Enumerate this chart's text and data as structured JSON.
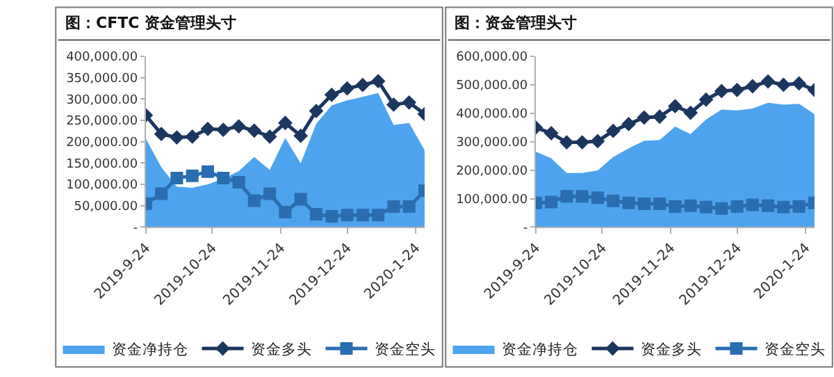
{
  "chart_data": [
    {
      "type": "line",
      "title": "图：CFTC 资金管理头寸",
      "x": [
        "2019-09-24",
        "2019-10-01",
        "2019-10-08",
        "2019-10-15",
        "2019-10-22",
        "2019-10-29",
        "2019-11-05",
        "2019-11-12",
        "2019-11-19",
        "2019-11-26",
        "2019-12-03",
        "2019-12-10",
        "2019-12-17",
        "2019-12-24",
        "2019-12-31",
        "2020-01-07",
        "2020-01-14",
        "2020-01-21",
        "2020-01-28"
      ],
      "series": [
        {
          "name": "资金净持仓",
          "type": "area",
          "color": "#4da3ee",
          "values": [
            207000,
            140000,
            95000,
            92000,
            100000,
            113000,
            131000,
            164000,
            134000,
            209000,
            149000,
            242000,
            285000,
            297000,
            305000,
            314000,
            239000,
            244000,
            180000
          ]
        },
        {
          "name": "资金多头",
          "color": "#1b365f",
          "marker": "diamond",
          "values": [
            262000,
            218000,
            210000,
            212000,
            230000,
            228000,
            236000,
            226000,
            212000,
            244000,
            214000,
            272000,
            310000,
            325000,
            333000,
            342000,
            287000,
            292000,
            265000
          ]
        },
        {
          "name": "资金空头",
          "color": "#2a6db0",
          "marker": "square",
          "values": [
            55000,
            78000,
            115000,
            120000,
            130000,
            115000,
            105000,
            62000,
            78000,
            35000,
            65000,
            30000,
            25000,
            28000,
            28000,
            28000,
            48000,
            48000,
            85000
          ]
        }
      ],
      "xlim": [
        "2019-09-24",
        "2020-01-28"
      ],
      "xticks": [
        {
          "value": "2019-09-24",
          "label": "2019-9-24"
        },
        {
          "value": "2019-10-24",
          "label": "2019-10-24"
        },
        {
          "value": "2019-11-24",
          "label": "2019-11-24"
        },
        {
          "value": "2019-12-24",
          "label": "2019-12-24"
        },
        {
          "value": "2020-01-24",
          "label": "2020-1-24"
        }
      ],
      "ylim": [
        0,
        400000
      ],
      "yticks": [
        {
          "value": 0,
          "label": "-"
        },
        {
          "value": 50000,
          "label": "50,000.00"
        },
        {
          "value": 100000,
          "label": "100,000.00"
        },
        {
          "value": 150000,
          "label": "150,000.00"
        },
        {
          "value": 200000,
          "label": "200,000.00"
        },
        {
          "value": 250000,
          "label": "250,000.00"
        },
        {
          "value": 300000,
          "label": "300,000.00"
        },
        {
          "value": 350000,
          "label": "350,000.00"
        },
        {
          "value": 400000,
          "label": "400,000.00"
        }
      ],
      "legend": "bottom"
    },
    {
      "type": "line",
      "title": "图：资金管理头寸",
      "x": [
        "2019-09-24",
        "2019-10-01",
        "2019-10-08",
        "2019-10-15",
        "2019-10-22",
        "2019-10-29",
        "2019-11-05",
        "2019-11-12",
        "2019-11-19",
        "2019-11-26",
        "2019-12-03",
        "2019-12-10",
        "2019-12-17",
        "2019-12-24",
        "2019-12-31",
        "2020-01-07",
        "2020-01-14",
        "2020-01-21",
        "2020-01-28"
      ],
      "series": [
        {
          "name": "资金净持仓",
          "type": "area",
          "color": "#4da3ee",
          "values": [
            265000,
            242000,
            190000,
            190000,
            199000,
            246000,
            277000,
            303000,
            306000,
            353000,
            327000,
            378000,
            413000,
            410000,
            417000,
            437000,
            430000,
            433000,
            397000
          ]
        },
        {
          "name": "资金多头",
          "color": "#1b365f",
          "marker": "diamond",
          "values": [
            350000,
            330000,
            298000,
            298000,
            302000,
            338000,
            362000,
            385000,
            388000,
            425000,
            402000,
            448000,
            478000,
            482000,
            495000,
            512000,
            500000,
            505000,
            482000
          ]
        },
        {
          "name": "资金空头",
          "color": "#2a6db0",
          "marker": "square",
          "values": [
            85000,
            88000,
            108000,
            108000,
            103000,
            92000,
            85000,
            82000,
            82000,
            72000,
            75000,
            70000,
            65000,
            72000,
            78000,
            75000,
            70000,
            72000,
            85000
          ]
        }
      ],
      "xlim": [
        "2019-09-24",
        "2020-01-28"
      ],
      "xticks": [
        {
          "value": "2019-09-24",
          "label": "2019-9-24"
        },
        {
          "value": "2019-10-24",
          "label": "2019-10-24"
        },
        {
          "value": "2019-11-24",
          "label": "2019-11-24"
        },
        {
          "value": "2019-12-24",
          "label": "2019-12-24"
        },
        {
          "value": "2020-01-24",
          "label": "2020-1-24"
        }
      ],
      "ylim": [
        0,
        600000
      ],
      "yticks": [
        {
          "value": 0,
          "label": "-"
        },
        {
          "value": 100000,
          "label": "100,000.00"
        },
        {
          "value": 200000,
          "label": "200,000.00"
        },
        {
          "value": 300000,
          "label": "300,000.00"
        },
        {
          "value": 400000,
          "label": "400,000.00"
        },
        {
          "value": 500000,
          "label": "500,000.00"
        },
        {
          "value": 600000,
          "label": "600,000.00"
        }
      ],
      "legend": "bottom"
    }
  ]
}
